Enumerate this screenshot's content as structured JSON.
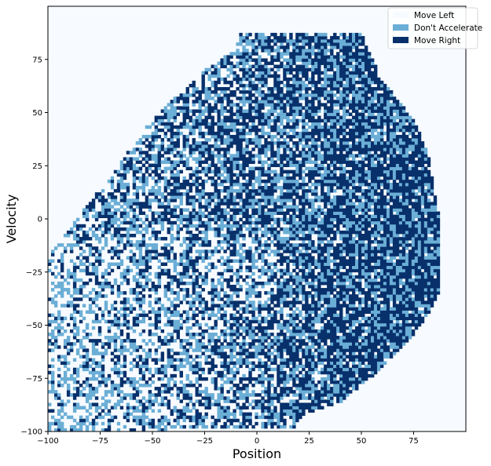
{
  "chart_data": {
    "type": "heatmap",
    "title": "",
    "xlabel": "Position",
    "ylabel": "Velocity",
    "xlim": [
      -100,
      100
    ],
    "ylim": [
      -100,
      100
    ],
    "xticks": [
      -100,
      -75,
      -50,
      -25,
      0,
      25,
      50,
      75
    ],
    "yticks": [
      -100,
      -75,
      -50,
      -25,
      0,
      25,
      50,
      75
    ],
    "xtick_labels": [
      "−100",
      "−75",
      "−50",
      "−25",
      "0",
      "25",
      "50",
      "75"
    ],
    "ytick_labels": [
      "−100",
      "−75",
      "−50",
      "−25",
      "0",
      "25",
      "50",
      "75"
    ],
    "grid": false,
    "legend_position": "top-right",
    "background_color": "#f7fbff",
    "classes": [
      {
        "name": "Move Left",
        "color": "#f7fbff"
      },
      {
        "name": "Don't Accelerate",
        "color": "#6baed6"
      },
      {
        "name": "Move Right",
        "color": "#08306b"
      }
    ],
    "region_boundary": {
      "description": "visited state region (approximate)",
      "points": [
        [
          -100,
          -100
        ],
        [
          -100,
          -18
        ],
        [
          -83,
          4
        ],
        [
          -68,
          23
        ],
        [
          -50,
          47
        ],
        [
          -25,
          70
        ],
        [
          -10,
          80
        ],
        [
          -8,
          88
        ],
        [
          50,
          88
        ],
        [
          53,
          80
        ],
        [
          60,
          65
        ],
        [
          70,
          53
        ],
        [
          76,
          45
        ],
        [
          82,
          30
        ],
        [
          85,
          12
        ],
        [
          88,
          -3
        ],
        [
          88,
          -18
        ],
        [
          87,
          -35
        ],
        [
          82,
          -45
        ],
        [
          72,
          -58
        ],
        [
          60,
          -70
        ],
        [
          50,
          -78
        ],
        [
          40,
          -86
        ],
        [
          22,
          -92
        ],
        [
          18,
          -98
        ],
        [
          -80,
          -100
        ]
      ]
    },
    "trend": "Move Right dominates at higher positions; Move Left dominates at low positions with negative velocity; mixed elsewhere"
  }
}
